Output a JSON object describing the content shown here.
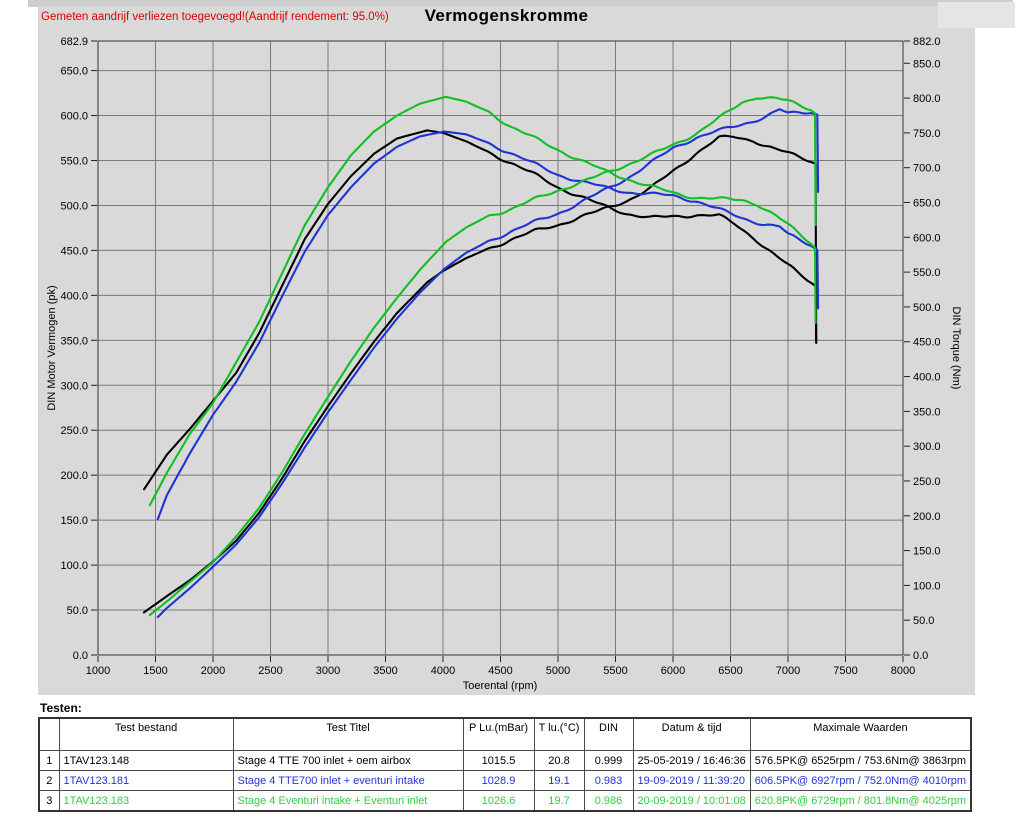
{
  "header": {
    "note": "Gemeten aandrijf verliezen toegevoegd!(Aandrijf rendement: 95.0%)",
    "title": "Vermogenskromme"
  },
  "chart_data": {
    "type": "line",
    "x_axis": {
      "label": "Toerental (rpm)",
      "min": 1000,
      "max": 8000,
      "ticks": [
        1000,
        1500,
        2000,
        2500,
        3000,
        3500,
        4000,
        4500,
        5000,
        5500,
        6000,
        6500,
        7000,
        7500,
        8000
      ]
    },
    "left_axis": {
      "label": "DIN Motor Vermogen (pk)",
      "min": 0,
      "max": 682.9,
      "ticks": [
        682.9,
        650,
        600,
        550,
        500,
        450,
        400,
        350,
        300,
        250,
        200,
        150,
        100,
        50,
        0
      ]
    },
    "right_axis": {
      "label": "DIN Torque (Nm)",
      "min": 0,
      "max": 882,
      "ticks": [
        882,
        850,
        800,
        750,
        700,
        650,
        600,
        550,
        500,
        450,
        400,
        350,
        300,
        250,
        200,
        150,
        100,
        50,
        0
      ]
    },
    "grid": true,
    "series": [
      {
        "name": "Stage 4 TTE 700  inlet + oem airbox",
        "color": "#000000",
        "max_power_pk": 576.5,
        "max_power_rpm": 6525,
        "max_torque_nm": 753.6,
        "max_torque_rpm": 3863,
        "power": [
          [
            1400,
            47.4
          ],
          [
            1600,
            65.6
          ],
          [
            1800,
            83.3
          ],
          [
            2000,
            103.9
          ],
          [
            2200,
            126.9
          ],
          [
            2400,
            157.9
          ],
          [
            2600,
            196.2
          ],
          [
            2800,
            238.4
          ],
          [
            3000,
            276.8
          ],
          [
            3200,
            313.5
          ],
          [
            3400,
            348.5
          ],
          [
            3600,
            380.3
          ],
          [
            3863,
            414.6
          ],
          [
            4000,
            427.1
          ],
          [
            4200,
            441.3
          ],
          [
            4400,
            452.3
          ],
          [
            4600,
            462.4
          ],
          [
            4800,
            471.6
          ],
          [
            5000,
            478.4
          ],
          [
            5200,
            487.2
          ],
          [
            5400,
            495.9
          ],
          [
            5600,
            505.5
          ],
          [
            5800,
            518.6
          ],
          [
            6000,
            538.2
          ],
          [
            6200,
            557.9
          ],
          [
            6400,
            575.0
          ],
          [
            6525,
            576.5
          ],
          [
            6700,
            572.4
          ],
          [
            6800,
            566.3
          ],
          [
            7000,
            558.1
          ],
          [
            7100,
            554.1
          ],
          [
            7200,
            549.4
          ],
          [
            7240,
            546.4
          ],
          [
            7245,
            347
          ]
        ],
        "torque": [
          [
            1400,
            238
          ],
          [
            1600,
            288
          ],
          [
            1800,
            325
          ],
          [
            2000,
            365
          ],
          [
            2200,
            405
          ],
          [
            2400,
            462
          ],
          [
            2600,
            530
          ],
          [
            2800,
            598
          ],
          [
            3000,
            648
          ],
          [
            3200,
            688
          ],
          [
            3400,
            720
          ],
          [
            3600,
            742
          ],
          [
            3863,
            753.6
          ],
          [
            4000,
            750
          ],
          [
            4200,
            738
          ],
          [
            4400,
            722
          ],
          [
            4600,
            706
          ],
          [
            4800,
            690
          ],
          [
            5000,
            672
          ],
          [
            5200,
            658
          ],
          [
            5400,
            645
          ],
          [
            5600,
            634
          ],
          [
            5800,
            628
          ],
          [
            6000,
            630
          ],
          [
            6200,
            632
          ],
          [
            6400,
            631
          ],
          [
            6525,
            620.5
          ],
          [
            6700,
            600
          ],
          [
            6800,
            585
          ],
          [
            7000,
            560
          ],
          [
            7100,
            548
          ],
          [
            7200,
            536
          ],
          [
            7240,
            530
          ],
          [
            7245,
            450
          ]
        ]
      },
      {
        "name": "Stage 4 TTE700 inlet + eventuri intake",
        "color": "#1e33d4",
        "max_power_pk": 606.5,
        "max_power_rpm": 6927,
        "max_torque_nm": 752.0,
        "max_torque_rpm": 4010,
        "power": [
          [
            1520,
            42.2
          ],
          [
            1600,
            52.4
          ],
          [
            1800,
            74.3
          ],
          [
            2000,
            98.2
          ],
          [
            2200,
            122.8
          ],
          [
            2400,
            153.1
          ],
          [
            2600,
            190.6
          ],
          [
            2800,
            231.2
          ],
          [
            3000,
            269.9
          ],
          [
            3200,
            306.2
          ],
          [
            3400,
            341.8
          ],
          [
            3600,
            374.2
          ],
          [
            3800,
            403.1
          ],
          [
            4010,
            429.3
          ],
          [
            4200,
            447.3
          ],
          [
            4400,
            460.5
          ],
          [
            4600,
            471.6
          ],
          [
            4800,
            481.8
          ],
          [
            5000,
            491.2
          ],
          [
            5200,
            503.4
          ],
          [
            5400,
            516.7
          ],
          [
            5600,
            530.2
          ],
          [
            5800,
            546.7
          ],
          [
            6000,
            563.8
          ],
          [
            6200,
            575.5
          ],
          [
            6400,
            583.1
          ],
          [
            6600,
            590.2
          ],
          [
            6800,
            598.3
          ],
          [
            6927,
            606.5
          ],
          [
            7000,
            602.0
          ],
          [
            7100,
            603.5
          ],
          [
            7200,
            603.8
          ],
          [
            7255,
            601.2
          ],
          [
            7262,
            515
          ]
        ],
        "torque": [
          [
            1520,
            195
          ],
          [
            1600,
            230
          ],
          [
            1800,
            290
          ],
          [
            2000,
            345
          ],
          [
            2200,
            392
          ],
          [
            2400,
            448
          ],
          [
            2600,
            515
          ],
          [
            2800,
            580
          ],
          [
            3000,
            632
          ],
          [
            3200,
            672
          ],
          [
            3400,
            706
          ],
          [
            3600,
            730
          ],
          [
            3800,
            745
          ],
          [
            4010,
            752
          ],
          [
            4200,
            748
          ],
          [
            4400,
            735
          ],
          [
            4600,
            720
          ],
          [
            4800,
            705
          ],
          [
            5000,
            690
          ],
          [
            5200,
            680
          ],
          [
            5400,
            672
          ],
          [
            5600,
            665
          ],
          [
            5800,
            662
          ],
          [
            6000,
            660
          ],
          [
            6200,
            652
          ],
          [
            6400,
            640
          ],
          [
            6600,
            628
          ],
          [
            6800,
            618
          ],
          [
            6927,
            615
          ],
          [
            7000,
            604
          ],
          [
            7100,
            597
          ],
          [
            7200,
            589
          ],
          [
            7255,
            582
          ],
          [
            7262,
            498
          ]
        ]
      },
      {
        "name": "Stage 4 Eventuri intake + Eventuri inlet",
        "color": "#12bf22",
        "max_power_pk": 620.8,
        "max_power_rpm": 6729,
        "max_torque_nm": 801.8,
        "max_torque_rpm": 4025,
        "power": [
          [
            1450,
            44.4
          ],
          [
            1600,
            59.7
          ],
          [
            1800,
            81.5
          ],
          [
            2000,
            103.1
          ],
          [
            2200,
            131.6
          ],
          [
            2400,
            163.3
          ],
          [
            2600,
            202.9
          ],
          [
            2800,
            246.4
          ],
          [
            3000,
            287.0
          ],
          [
            3200,
            327.1
          ],
          [
            3400,
            364.0
          ],
          [
            3600,
            397.2
          ],
          [
            3800,
            428.5
          ],
          [
            4025,
            459.5
          ],
          [
            4200,
            475.4
          ],
          [
            4400,
            488.6
          ],
          [
            4600,
            496.4
          ],
          [
            4800,
            507.1
          ],
          [
            5000,
            516.8
          ],
          [
            5200,
            525.6
          ],
          [
            5400,
            535.1
          ],
          [
            5600,
            545.4
          ],
          [
            5800,
            555.8
          ],
          [
            6000,
            567.2
          ],
          [
            6200,
            580.0
          ],
          [
            6400,
            596.9
          ],
          [
            6600,
            614.6
          ],
          [
            6729,
            620.8
          ],
          [
            6800,
            619.6
          ],
          [
            6900,
            618.9
          ],
          [
            7000,
            615.9
          ],
          [
            7100,
            611.6
          ],
          [
            7200,
            606.9
          ],
          [
            7235,
            602.6
          ],
          [
            7240,
            478
          ]
        ],
        "torque": [
          [
            1450,
            215
          ],
          [
            1600,
            262
          ],
          [
            1800,
            318
          ],
          [
            2000,
            362
          ],
          [
            2200,
            420
          ],
          [
            2400,
            478
          ],
          [
            2600,
            548
          ],
          [
            2800,
            618
          ],
          [
            3000,
            672
          ],
          [
            3200,
            718
          ],
          [
            3400,
            752
          ],
          [
            3600,
            775
          ],
          [
            3800,
            792
          ],
          [
            4025,
            801.8
          ],
          [
            4200,
            795
          ],
          [
            4400,
            780
          ],
          [
            4600,
            758
          ],
          [
            4800,
            742
          ],
          [
            5000,
            726
          ],
          [
            5200,
            710
          ],
          [
            5400,
            696
          ],
          [
            5600,
            684
          ],
          [
            5800,
            673
          ],
          [
            6000,
            664
          ],
          [
            6200,
            657
          ],
          [
            6400,
            655
          ],
          [
            6600,
            654
          ],
          [
            6729,
            648
          ],
          [
            6800,
            640
          ],
          [
            6900,
            630
          ],
          [
            7000,
            618
          ],
          [
            7100,
            605
          ],
          [
            7200,
            592
          ],
          [
            7235,
            585
          ],
          [
            7240,
            477
          ]
        ]
      }
    ]
  },
  "tests": {
    "label": "Testen:",
    "headers": [
      "",
      "Test bestand",
      "Test Titel",
      "P Lu.(mBar)",
      "T lu.(°C)",
      "DIN",
      "Datum & tijd",
      "Maximale Waarden"
    ],
    "rows": [
      {
        "num": "1",
        "file": "1TAV123.148",
        "title": "Stage 4 TTE 700  inlet + oem airbox",
        "p_lu": "1015.5",
        "t_lu": "20.8",
        "din": "0.999",
        "datum": "25-05-2019 / 16:46:36",
        "max": "576.5PK@ 6525rpm / 753.6Nm@ 3863rpm",
        "color": "#000000"
      },
      {
        "num": "2",
        "file": "1TAV123.181",
        "title": "Stage 4 TTE700 inlet + eventuri intake",
        "p_lu": "1028.9",
        "t_lu": "19.1",
        "din": "0.983",
        "datum": "19-09-2019 / 11:39:20",
        "max": "606.5PK@ 6927rpm / 752.0Nm@ 4010rpm",
        "color": "#2433d6"
      },
      {
        "num": "3",
        "file": "1TAV123.183",
        "title": "Stage 4 Eventuri intake + Eventuri inlet",
        "p_lu": "1026.6",
        "t_lu": "19.7",
        "din": "0.986",
        "datum": "20-09-2019 / 10:01:08",
        "max": "620.8PK@ 6729rpm / 801.8Nm@ 4025rpm",
        "color": "#35cc45"
      }
    ]
  },
  "colors": {
    "note_red": "#d90000",
    "panel_gray": "#d9d9d9",
    "grid_gray": "#7a7a7a"
  }
}
